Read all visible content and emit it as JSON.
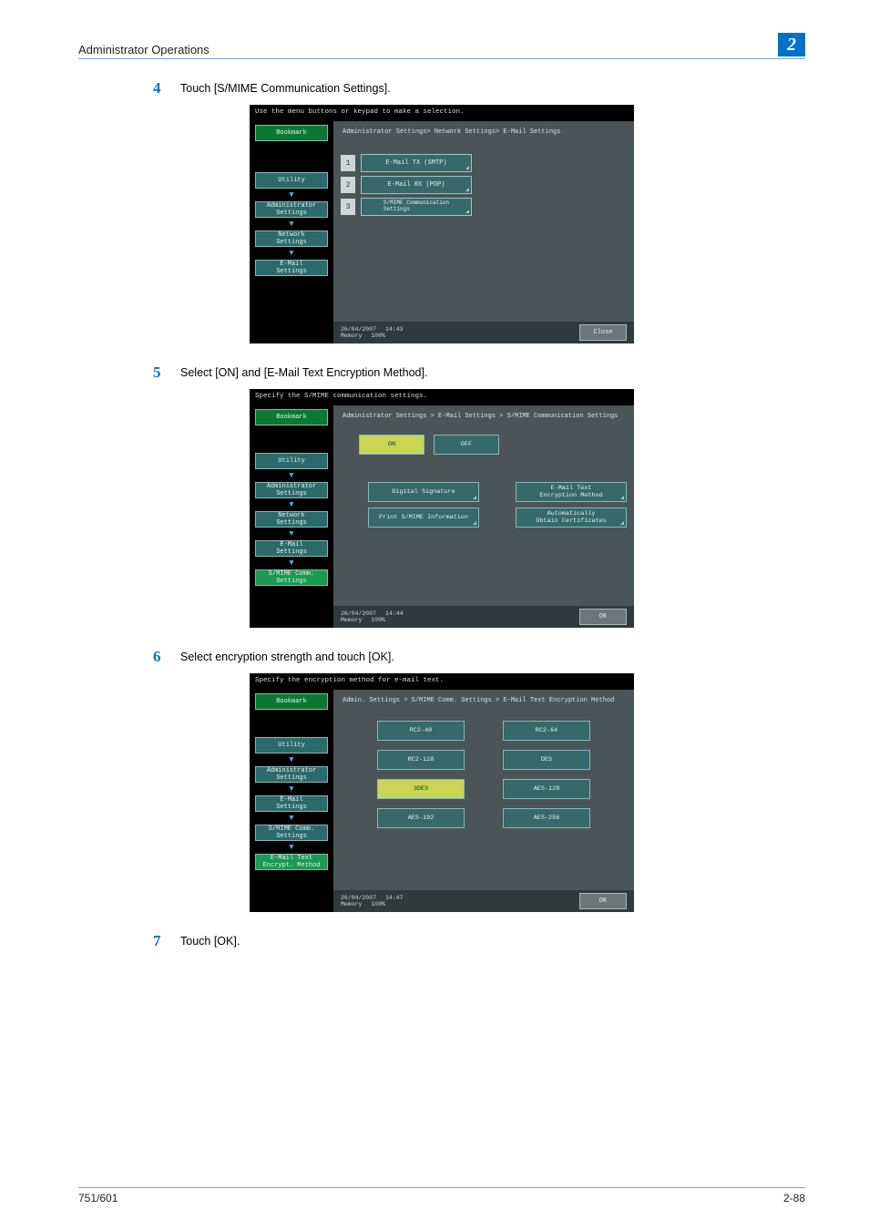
{
  "header": {
    "title": "Administrator Operations",
    "badge": "2"
  },
  "footer": {
    "left": "751/601",
    "right": "2-88"
  },
  "steps": [
    {
      "num": "4",
      "text": "Touch [S/MIME Communication Settings]."
    },
    {
      "num": "5",
      "text": "Select [ON] and [E-Mail Text Encryption Method]."
    },
    {
      "num": "6",
      "text": "Select encryption strength and touch [OK]."
    },
    {
      "num": "7",
      "text": "Touch [OK]."
    }
  ],
  "common": {
    "bookmark": "Bookmark",
    "mem_label": "Memory",
    "mem_val": "100%",
    "utility": "Utility",
    "admin": "Administrator\nSettings",
    "net": "Network\nSettings",
    "email": "E-Mail\nSettings",
    "smime": "S/MIME Comm.\nSettings",
    "enc": "E-Mail Text\nEncrypt. Method"
  },
  "shot1": {
    "top": "Use the menu buttons or keypad to make a selection.",
    "crumb": "Administrator Settings> Network Settings> E-Mail Settings",
    "date": "26/04/2007",
    "time": "14:43",
    "btn": "Close",
    "items": [
      {
        "n": "1",
        "label": "E-Mail TX (SMTP)"
      },
      {
        "n": "2",
        "label": "E-Mail RX (POP)"
      },
      {
        "n": "3",
        "label": "S/MIME Communication\nSettings"
      }
    ]
  },
  "shot2": {
    "top": "Specify the S/MIME communication settings.",
    "crumb": "Administrator Settings > E-Mail Settings > S/MIME Communication Settings",
    "date": "26/04/2007",
    "time": "14:44",
    "btn": "OK",
    "on": "ON",
    "off": "OFF",
    "opts": [
      "Digital Signature",
      "E-Mail Text\nEncryption Method",
      "Print S/MIME Information",
      "Automatically\nObtain Certificates"
    ]
  },
  "shot3": {
    "top": "Specify the encryption method for e-mail text.",
    "crumb": "Admin. Settings > S/MIME Comm. Settings > E-Mail Text Encryption Method",
    "date": "26/04/2007",
    "time": "14:47",
    "btn": "OK",
    "opts": [
      "RC2-40",
      "RC2-64",
      "RC2-128",
      "DES",
      "3DES",
      "AES-128",
      "AES-192",
      "AES-256"
    ],
    "selected": "3DES"
  },
  "colors": {
    "accent": "#0073c8",
    "panel": "#4b5456",
    "btn": "#35696b",
    "sel": "#c8d654"
  }
}
